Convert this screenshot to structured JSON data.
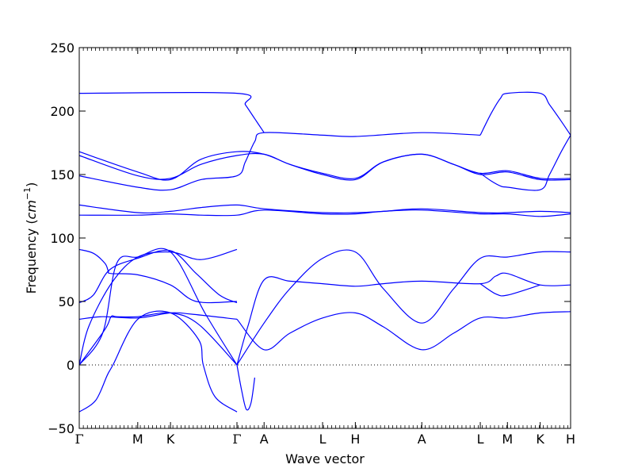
{
  "chart_data": {
    "type": "line",
    "title": "",
    "xlabel": "Wave vector",
    "ylabel": "Frequency ($cm^{-1}$)",
    "ylabel_parts": {
      "text": "Frequency (",
      "unit_base": "cm",
      "unit_exp": "−1",
      "close": ")"
    },
    "ylim": [
      -50,
      250
    ],
    "yticks": [
      -50,
      0,
      50,
      100,
      150,
      200,
      250
    ],
    "xlim": [
      0,
      10.5
    ],
    "kpoints": [
      {
        "label": "Γ",
        "x": 0.0
      },
      {
        "label": "M",
        "x": 1.25
      },
      {
        "label": "K",
        "x": 1.95
      },
      {
        "label": "Γ",
        "x": 3.37
      },
      {
        "label": "A",
        "x": 3.95
      },
      {
        "label": "L",
        "x": 5.2
      },
      {
        "label": "H",
        "x": 5.9
      },
      {
        "label": "A",
        "x": 7.32
      },
      {
        "label": "L",
        "x": 8.57
      },
      {
        "label": "M",
        "x": 9.15
      },
      {
        "label": "K",
        "x": 9.85
      },
      {
        "label": "H",
        "x": 10.5
      }
    ],
    "zero_line": true,
    "line_color": "#0000ff",
    "series": [
      {
        "x": [
          0,
          0.3,
          0.55,
          0.62,
          0.68,
          1.25,
          1.95,
          2.5,
          3.37
        ],
        "y": [
          91,
          88,
          80,
          74,
          72,
          71,
          63,
          50,
          50
        ]
      },
      {
        "x": [
          0,
          0.3,
          0.65,
          1.25,
          1.95,
          2.5,
          3.0,
          3.37
        ],
        "y": [
          49,
          55,
          75,
          84,
          90,
          72,
          55,
          49
        ]
      },
      {
        "x": [
          0,
          0.2,
          0.7,
          1.25,
          1.95,
          2.6,
          3.37
        ],
        "y": [
          0,
          30,
          65,
          85,
          89,
          83,
          91
        ]
      },
      {
        "x": [
          0,
          0.5,
          0.8,
          1.25,
          1.95,
          2.7,
          3.37
        ],
        "y": [
          0,
          25,
          80,
          85,
          89,
          40,
          0
        ]
      },
      {
        "x": [
          0,
          0.5,
          1.25,
          1.95,
          2.4,
          3.37
        ],
        "y": [
          36,
          38,
          37,
          41,
          40,
          36
        ]
      },
      {
        "x": [
          0,
          0.55,
          0.68,
          0.8,
          1.25,
          1.95,
          2.55,
          3.37
        ],
        "y": [
          0,
          28,
          38,
          38,
          38,
          41,
          32,
          0
        ]
      },
      {
        "x": [
          0,
          0.35,
          0.6,
          0.72,
          1.25,
          1.95,
          2.55,
          2.65,
          2.9,
          3.37
        ],
        "y": [
          -37,
          -28,
          -8,
          0,
          36,
          41,
          20,
          0,
          -25,
          -37
        ]
      },
      {
        "x": [
          3.37,
          3.47,
          3.57,
          3.67,
          3.75
        ],
        "y": [
          0,
          -20,
          -35,
          -30,
          -10
        ]
      },
      {
        "x": [
          3.37,
          3.95,
          4.5,
          5.2,
          5.9,
          6.5,
          7.32,
          8.0,
          8.57,
          9.15,
          9.85,
          10.5
        ],
        "y": [
          0,
          33,
          60,
          84,
          89,
          60,
          33,
          60,
          84,
          85,
          89,
          89
        ]
      },
      {
        "x": [
          3.37,
          3.6,
          3.95,
          4.5,
          5.2,
          5.9,
          6.5,
          7.32,
          8.57,
          8.9,
          9.15,
          9.85,
          10.5
        ],
        "y": [
          0,
          30,
          67,
          66,
          64,
          62,
          64,
          66,
          64,
          70,
          72,
          63,
          63
        ]
      },
      {
        "x": [
          3.37,
          3.95,
          4.5,
          5.2,
          5.9,
          6.5,
          7.32,
          8.0,
          8.57,
          9.15,
          9.85,
          10.5
        ],
        "y": [
          36,
          12,
          25,
          37,
          41,
          30,
          12,
          25,
          37,
          37,
          41,
          42
        ]
      },
      {
        "x": [
          8.57,
          8.9,
          9.15,
          9.85
        ],
        "y": [
          64,
          56,
          55,
          63
        ]
      },
      {
        "x": [
          0,
          1.25,
          1.95,
          2.6,
          3.37,
          3.95,
          5.2,
          5.9,
          6.5,
          7.32,
          8.57,
          9.15,
          9.85,
          10.5
        ],
        "y": [
          118,
          118,
          119,
          118,
          118,
          122,
          119,
          119,
          121,
          122,
          119,
          119,
          117,
          119
        ]
      },
      {
        "x": [
          0,
          1.25,
          1.95,
          2.6,
          3.37,
          3.95,
          5.2,
          5.9,
          6.5,
          7.32,
          8.57,
          9.15,
          9.85,
          10.5
        ],
        "y": [
          126,
          120,
          121,
          124,
          126,
          123,
          120,
          120,
          121,
          123,
          120,
          120,
          121,
          120
        ]
      },
      {
        "x": [
          0,
          1.25,
          1.95,
          2.6,
          3.37,
          3.95,
          4.5,
          5.2,
          5.9,
          6.5,
          7.32,
          8.0,
          8.57,
          9.15,
          9.85,
          10.5
        ],
        "y": [
          168,
          152,
          146,
          162,
          168,
          166,
          158,
          150,
          146,
          160,
          166,
          158,
          150,
          152,
          146,
          146
        ]
      },
      {
        "x": [
          0,
          1.25,
          1.95,
          2.6,
          3.37,
          3.95,
          4.5,
          5.2,
          5.9,
          6.5,
          7.32,
          8.0,
          8.57,
          9.15,
          9.85,
          10.5
        ],
        "y": [
          165,
          149,
          147,
          158,
          165,
          166,
          158,
          151,
          147,
          160,
          166,
          158,
          151,
          153,
          147,
          147
        ]
      },
      {
        "x": [
          0,
          1.25,
          1.95,
          2.6,
          3.37,
          3.55,
          3.75,
          3.95,
          5.2,
          5.9,
          7.32,
          8.57
        ],
        "y": [
          149,
          140,
          138,
          146,
          149,
          160,
          176,
          183,
          181,
          180,
          183,
          181
        ]
      },
      {
        "x": [
          0,
          3.37,
          3.55,
          3.75,
          3.95
        ],
        "y": [
          214,
          214,
          205,
          194,
          183
        ]
      },
      {
        "x": [
          8.57,
          8.8,
          9.0,
          9.15,
          9.85,
          10.05,
          10.3,
          10.5
        ],
        "y": [
          181,
          198,
          210,
          214,
          214,
          205,
          192,
          181
        ]
      },
      {
        "x": [
          8.57,
          8.8,
          9.0,
          9.15,
          9.85,
          10.05,
          10.3,
          10.5
        ],
        "y": [
          151,
          145,
          141,
          140,
          138,
          150,
          168,
          181
        ]
      }
    ]
  }
}
